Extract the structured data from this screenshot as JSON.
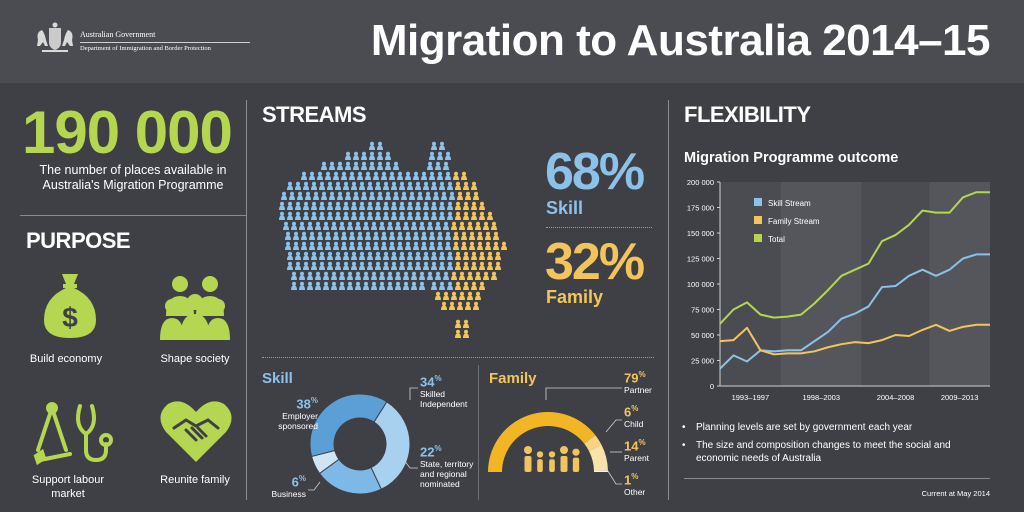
{
  "header": {
    "gov_name": "Australian Government",
    "department": "Department of Immigration and Border Protection",
    "title": "Migration to Australia 2014–15"
  },
  "places": {
    "number": "190 000",
    "description": "The number of places available in Australia's Migration Programme"
  },
  "purpose": {
    "title": "PURPOSE",
    "items": [
      {
        "label": "Build economy",
        "icon": "money-bag-icon"
      },
      {
        "label": "Shape society",
        "icon": "people-group-icon"
      },
      {
        "label": "Support labour market",
        "icon": "tools-icon"
      },
      {
        "label": "Reunite family",
        "icon": "handshake-heart-icon"
      }
    ]
  },
  "streams": {
    "title": "STREAMS",
    "skill_pct": "68%",
    "skill_label": "Skill",
    "family_pct": "32%",
    "family_label": "Family"
  },
  "skill_breakdown": {
    "title": "Skill",
    "segments": [
      {
        "pct": "38",
        "label": "Employer sponsored",
        "value": 38
      },
      {
        "pct": "34",
        "label": "Skilled Independent",
        "value": 34
      },
      {
        "pct": "22",
        "label": "State, territory and regional nominated",
        "value": 22
      },
      {
        "pct": "6",
        "label": "Business",
        "value": 6
      }
    ]
  },
  "family_breakdown": {
    "title": "Family",
    "segments": [
      {
        "pct": "79",
        "label": "Partner",
        "value": 79
      },
      {
        "pct": "6",
        "label": "Child",
        "value": 6
      },
      {
        "pct": "14",
        "label": "Parent",
        "value": 14
      },
      {
        "pct": "1",
        "label": "Other",
        "value": 1
      }
    ]
  },
  "flexibility": {
    "title": "FLEXIBILITY",
    "bullets": [
      "Planning levels are set by government each year",
      "The size and composition changes to meet the social and economic needs of Australia"
    ],
    "current": "Current at May 2014"
  },
  "colors": {
    "skill": "#8cc1e8",
    "family": "#f2c55c",
    "total": "#b4d651",
    "background": "#3f4046"
  },
  "chart_data": {
    "type": "line",
    "title": "Migration Programme outcome",
    "ylim": [
      0,
      200000
    ],
    "yticks": [
      "0",
      "25 000",
      "50 000",
      "75 000",
      "100 000",
      "125 000",
      "150 000",
      "175 000",
      "200 000"
    ],
    "x_period_labels": [
      "1993–1997",
      "1998–2003",
      "2004–2008",
      "2009–2013"
    ],
    "legend_position": "top-left",
    "x": [
      1993,
      1994,
      1995,
      1996,
      1997,
      1998,
      1999,
      2000,
      2001,
      2002,
      2003,
      2004,
      2005,
      2006,
      2007,
      2008,
      2009,
      2010,
      2011,
      2012,
      2013
    ],
    "series": [
      {
        "name": "Skill Stream",
        "color": "#8cc1e8",
        "values": [
          17000,
          30000,
          24000,
          35000,
          34000,
          35000,
          35000,
          44000,
          53000,
          66000,
          71000,
          78000,
          97000,
          98000,
          108000,
          114000,
          108000,
          114000,
          125000,
          129000,
          129000
        ]
      },
      {
        "name": "Family Stream",
        "color": "#f2c55c",
        "values": [
          44000,
          45000,
          57000,
          35000,
          31000,
          32000,
          32000,
          34000,
          38000,
          41000,
          43000,
          42000,
          45000,
          50000,
          49000,
          55000,
          60000,
          54000,
          58000,
          60000,
          60000
        ]
      },
      {
        "name": "Total",
        "color": "#b4d651",
        "values": [
          61000,
          75000,
          82000,
          70000,
          67000,
          68000,
          70000,
          81000,
          94000,
          108000,
          114000,
          120000,
          142000,
          148000,
          158000,
          172000,
          170000,
          170000,
          185000,
          190000,
          190000
        ]
      }
    ]
  }
}
